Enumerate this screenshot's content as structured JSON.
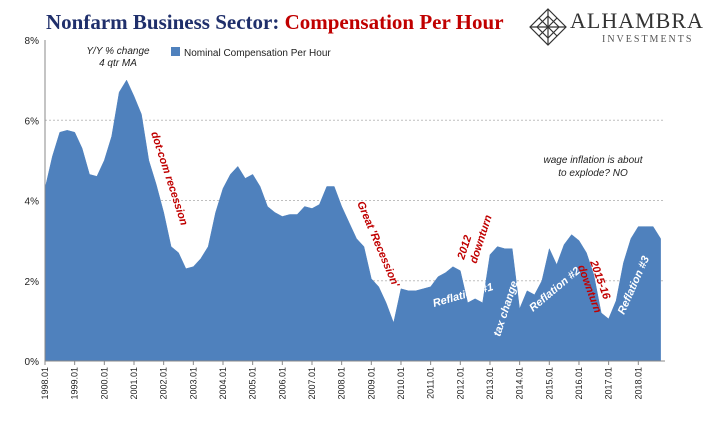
{
  "title": {
    "part1": "Nonfarm Business Sector:",
    "part2": "Compensation Per Hour"
  },
  "logo": {
    "brand": "ALHAMBRA",
    "sub": "INVESTMENTS"
  },
  "colors": {
    "area": "#4f81bd",
    "annotation": "#c00000",
    "white_annotation": "#ffffff",
    "grid": "#bfbfbf"
  },
  "chart_data": {
    "type": "area",
    "ylim": [
      0,
      8
    ],
    "yticks": [
      "0%",
      "2%",
      "4%",
      "6%",
      "8%"
    ],
    "xticks": [
      "1998.01",
      "1999.01",
      "2000.01",
      "2001.01",
      "2002.01",
      "2003.01",
      "2004.01",
      "2005.01",
      "2006.01",
      "2007.01",
      "2008.01",
      "2009.01",
      "2010.01",
      "2011.01",
      "2012.01",
      "2013.01",
      "2014.01",
      "2015.01",
      "2016.01",
      "2017.01",
      "2018.01"
    ],
    "legend": {
      "label": "Nominal Compensation Per Hour",
      "position": "top-left"
    },
    "note": [
      "Y/Y % change",
      "4 qtr MA"
    ],
    "series": [
      {
        "name": "Nominal Compensation Per Hour",
        "x_start": 1998.0,
        "step": 0.25,
        "values": [
          4.3,
          5.1,
          5.7,
          5.75,
          5.7,
          5.3,
          4.65,
          4.6,
          5.0,
          5.6,
          6.7,
          7.0,
          6.6,
          6.15,
          5.0,
          4.4,
          3.7,
          2.85,
          2.7,
          2.3,
          2.35,
          2.55,
          2.85,
          3.7,
          4.3,
          4.65,
          4.85,
          4.55,
          4.65,
          4.35,
          3.85,
          3.7,
          3.6,
          3.65,
          3.65,
          3.85,
          3.8,
          3.9,
          4.35,
          4.35,
          3.85,
          3.45,
          3.05,
          2.85,
          2.05,
          1.85,
          1.45,
          0.95,
          1.8,
          1.75,
          1.75,
          1.8,
          1.85,
          2.1,
          2.2,
          2.35,
          2.25,
          1.45,
          1.55,
          1.45,
          2.65,
          2.85,
          2.8,
          2.8,
          1.3,
          1.75,
          1.65,
          2.0,
          2.8,
          2.4,
          2.9,
          3.15,
          3.0,
          2.7,
          2.15,
          1.2,
          1.05,
          1.5,
          2.45,
          3.05,
          3.35,
          3.35,
          3.35,
          3.05
        ]
      }
    ],
    "annotations": [
      {
        "text": "dot-com recession",
        "color": "red"
      },
      {
        "text": "Great 'Recession'",
        "color": "red"
      },
      {
        "text": "Reflation #1",
        "color": "white"
      },
      {
        "text": "2012 downturn",
        "color": "red"
      },
      {
        "text": "tax change",
        "color": "white"
      },
      {
        "text": "Reflation #2",
        "color": "white"
      },
      {
        "text": "2015-16 downturn",
        "color": "red"
      },
      {
        "text": "Reflation #3",
        "color": "white"
      },
      {
        "text": "wage inflation is about to explode? NO",
        "color": "black"
      }
    ]
  }
}
